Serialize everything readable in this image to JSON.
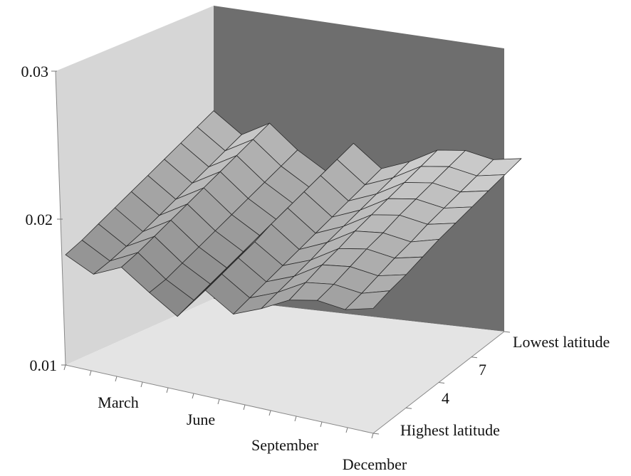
{
  "chart_data": {
    "type": "surface",
    "title": "",
    "xlabel": "",
    "ylabel": "",
    "zlabel": "",
    "zlim": [
      0.01,
      0.03
    ],
    "z_ticks": [
      "0.01",
      "0.02",
      "0.03"
    ],
    "month_tick_labels": [
      "March",
      "June",
      "September",
      "December"
    ],
    "latitude_tick_labels": [
      "Highest latitude",
      "4",
      "7",
      "Lowest latitude"
    ],
    "grid": false,
    "months": [
      1,
      2,
      3,
      4,
      5,
      6,
      7,
      8,
      9,
      10,
      11,
      12
    ],
    "latitude_rows": [
      1,
      2,
      3,
      4,
      5,
      6,
      7,
      8,
      9,
      10
    ],
    "values": [
      [
        0.0175,
        0.0166,
        0.0175,
        0.0162,
        0.015,
        0.0172,
        0.016,
        0.0168,
        0.0178,
        0.0182,
        0.018,
        0.0185
      ],
      [
        0.018,
        0.017,
        0.018,
        0.0166,
        0.0156,
        0.0178,
        0.0166,
        0.0174,
        0.0185,
        0.0188,
        0.0186,
        0.0192
      ],
      [
        0.0186,
        0.0175,
        0.0186,
        0.0172,
        0.0162,
        0.0184,
        0.0172,
        0.018,
        0.0192,
        0.0195,
        0.0193,
        0.0198
      ],
      [
        0.0192,
        0.018,
        0.0192,
        0.0178,
        0.0168,
        0.019,
        0.0178,
        0.0186,
        0.0198,
        0.0202,
        0.02,
        0.0205
      ],
      [
        0.0198,
        0.0186,
        0.0198,
        0.0184,
        0.0174,
        0.0197,
        0.0184,
        0.0193,
        0.0205,
        0.0208,
        0.0206,
        0.0212
      ],
      [
        0.0204,
        0.0192,
        0.0204,
        0.019,
        0.018,
        0.0203,
        0.019,
        0.0199,
        0.0211,
        0.0215,
        0.0213,
        0.0218
      ],
      [
        0.021,
        0.0198,
        0.021,
        0.0196,
        0.0186,
        0.0209,
        0.0196,
        0.0205,
        0.0217,
        0.0221,
        0.0219,
        0.0224
      ],
      [
        0.0216,
        0.0204,
        0.0216,
        0.0202,
        0.0192,
        0.0215,
        0.0202,
        0.0211,
        0.0223,
        0.0227,
        0.0225,
        0.023
      ],
      [
        0.0222,
        0.021,
        0.0222,
        0.0208,
        0.0198,
        0.0221,
        0.0208,
        0.0217,
        0.0229,
        0.0233,
        0.0231,
        0.0236
      ],
      [
        0.0228,
        0.0216,
        0.0228,
        0.0214,
        0.0204,
        0.0227,
        0.0214,
        0.0223,
        0.0235,
        0.0239,
        0.0237,
        0.0242
      ]
    ],
    "colors": {
      "left_wall": "#d6d6d6",
      "back_wall": "#6e6e6e",
      "floor": "#e4e4e4",
      "surface_light": "#f4f4f4",
      "surface_dark": "#4a4a4a",
      "edge": "#2a2a2a"
    }
  }
}
